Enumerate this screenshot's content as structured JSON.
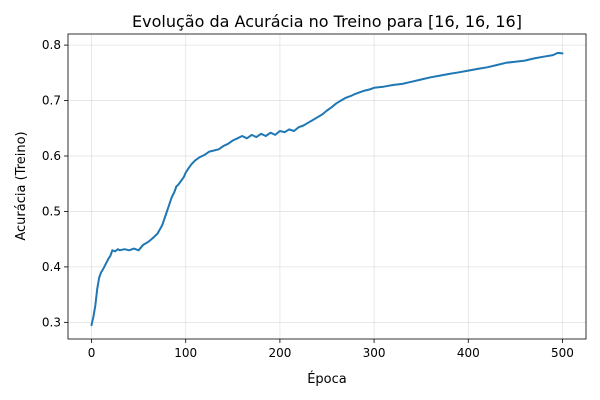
{
  "chart_data": {
    "type": "line",
    "title": "Evolução da Acurácia no Treino para [16, 16, 16]",
    "xlabel": "Época",
    "ylabel": "Acurácia (Treino)",
    "xlim": [
      -25,
      525
    ],
    "ylim": [
      0.27,
      0.82
    ],
    "xticks": [
      0,
      100,
      200,
      300,
      400,
      500
    ],
    "yticks": [
      0.3,
      0.4,
      0.5,
      0.6,
      0.7,
      0.8
    ],
    "xtick_labels": [
      "0",
      "100",
      "200",
      "300",
      "400",
      "500"
    ],
    "ytick_labels": [
      "0.3",
      "0.4",
      "0.5",
      "0.6",
      "0.7",
      "0.8"
    ],
    "grid": true,
    "legend": "none",
    "line_color": "#1f77b4",
    "series": [
      {
        "x": [
          0,
          2,
          4,
          6,
          8,
          10,
          12,
          15,
          18,
          20,
          22,
          25,
          28,
          30,
          35,
          40,
          45,
          50,
          55,
          60,
          65,
          70,
          75,
          78,
          80,
          82,
          85,
          88,
          90,
          92,
          95,
          98,
          100,
          103,
          106,
          110,
          115,
          120,
          125,
          130,
          135,
          140,
          145,
          150,
          155,
          160,
          165,
          170,
          175,
          180,
          185,
          190,
          195,
          200,
          205,
          210,
          215,
          220,
          225,
          230,
          235,
          240,
          245,
          250,
          255,
          260,
          265,
          270,
          275,
          280,
          285,
          290,
          295,
          300,
          310,
          320,
          330,
          340,
          350,
          360,
          370,
          380,
          390,
          400,
          410,
          420,
          430,
          440,
          450,
          460,
          470,
          480,
          490,
          495,
          500
        ],
        "y": [
          0.295,
          0.31,
          0.33,
          0.36,
          0.38,
          0.39,
          0.395,
          0.405,
          0.415,
          0.42,
          0.43,
          0.428,
          0.432,
          0.43,
          0.432,
          0.43,
          0.433,
          0.43,
          0.44,
          0.445,
          0.452,
          0.46,
          0.475,
          0.49,
          0.5,
          0.51,
          0.525,
          0.535,
          0.545,
          0.548,
          0.555,
          0.562,
          0.57,
          0.578,
          0.585,
          0.592,
          0.598,
          0.602,
          0.608,
          0.61,
          0.612,
          0.618,
          0.622,
          0.628,
          0.632,
          0.636,
          0.632,
          0.638,
          0.634,
          0.64,
          0.636,
          0.642,
          0.638,
          0.645,
          0.643,
          0.648,
          0.645,
          0.652,
          0.655,
          0.66,
          0.665,
          0.67,
          0.675,
          0.682,
          0.688,
          0.695,
          0.7,
          0.705,
          0.708,
          0.712,
          0.715,
          0.718,
          0.72,
          0.723,
          0.725,
          0.728,
          0.73,
          0.734,
          0.738,
          0.742,
          0.745,
          0.748,
          0.751,
          0.754,
          0.757,
          0.76,
          0.764,
          0.768,
          0.77,
          0.772,
          0.776,
          0.779,
          0.782,
          0.786,
          0.785
        ]
      }
    ]
  }
}
